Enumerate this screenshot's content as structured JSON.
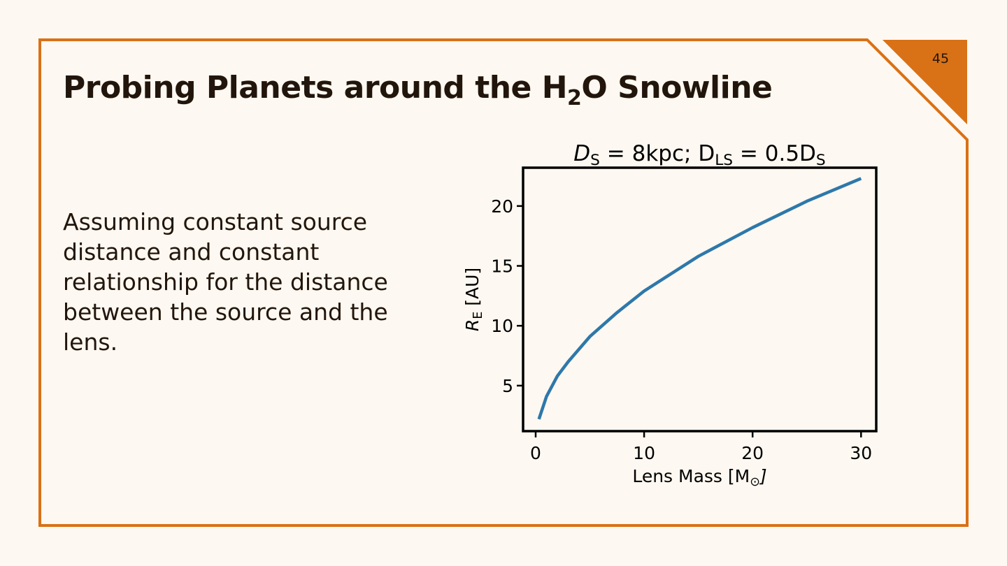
{
  "page_number": "45",
  "header": {
    "title": [
      "Probing Planets around the H",
      "2",
      "O Snowline"
    ]
  },
  "body": {
    "text": "Assuming constant source distance and constant relationship for the distance between the source and the lens."
  },
  "chart_data": {
    "type": "line",
    "title": [
      "D",
      "S",
      " = 8kpc; D",
      "LS",
      " = 0.5D",
      "S"
    ],
    "x_label": [
      "Lens Mass [M",
      "⊙",
      "]"
    ],
    "y_label": [
      "R",
      "E",
      " [AU]"
    ],
    "x": [
      0.3,
      1,
      2,
      3,
      5,
      7.5,
      10,
      15,
      20,
      25,
      30
    ],
    "values": [
      2.2,
      4.1,
      5.8,
      7.0,
      9.1,
      11.1,
      12.9,
      15.8,
      18.2,
      20.4,
      22.3
    ],
    "color": "#2e78aa",
    "xlim": [
      -1.16,
      31.4
    ],
    "ylim": [
      1.2,
      23.2
    ],
    "xticks": [
      0,
      10,
      20,
      30
    ],
    "yticks": [
      5,
      10,
      15,
      20
    ]
  }
}
